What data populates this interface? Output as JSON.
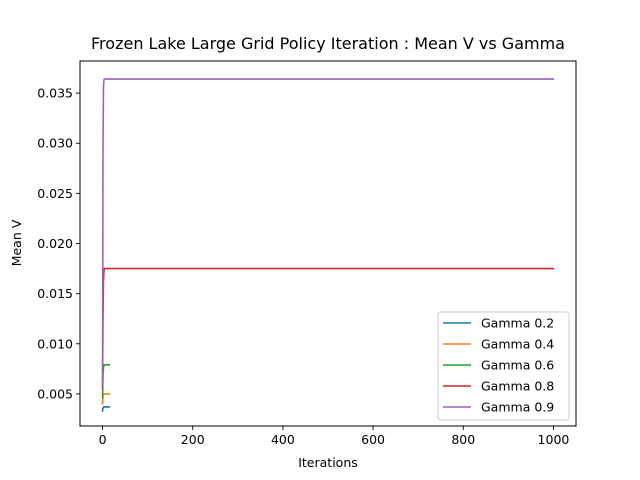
{
  "chart_data": {
    "type": "line",
    "title": "Frozen Lake Large Grid Policy Iteration : Mean V vs Gamma",
    "xlabel": "Iterations",
    "ylabel": "Mean V",
    "xlim": [
      -50,
      1050
    ],
    "ylim": [
      0.0018,
      0.0382
    ],
    "xticks": [
      0,
      200,
      400,
      600,
      800,
      1000
    ],
    "yticks": [
      0.005,
      0.01,
      0.015,
      0.02,
      0.025,
      0.03,
      0.035
    ],
    "ytick_labels": [
      "0.005",
      "0.010",
      "0.015",
      "0.020",
      "0.025",
      "0.030",
      "0.035"
    ],
    "legend_position": "lower-right",
    "series": [
      {
        "name": "Gamma 0.2",
        "color": "#1f77b4",
        "x": [
          0,
          1,
          2,
          15
        ],
        "y": [
          0.0033,
          0.0036,
          0.0037,
          0.0037
        ]
      },
      {
        "name": "Gamma 0.4",
        "color": "#ff7f0e",
        "x": [
          0,
          1,
          2,
          15
        ],
        "y": [
          0.004,
          0.0048,
          0.005,
          0.005
        ]
      },
      {
        "name": "Gamma 0.6",
        "color": "#2ca02c",
        "x": [
          0,
          1,
          2,
          3,
          15
        ],
        "y": [
          0.0046,
          0.0068,
          0.0076,
          0.0079,
          0.0079
        ]
      },
      {
        "name": "Gamma 0.8",
        "color": "#d62728",
        "x": [
          0,
          1,
          2,
          3,
          4,
          1000
        ],
        "y": [
          0.0056,
          0.0125,
          0.0162,
          0.0172,
          0.0175,
          0.0175
        ]
      },
      {
        "name": "Gamma 0.9",
        "color": "#9467bd",
        "x": [
          0,
          1,
          2,
          3,
          4,
          1000
        ],
        "y": [
          0.0058,
          0.029,
          0.0355,
          0.0363,
          0.0364,
          0.0364
        ]
      }
    ]
  }
}
